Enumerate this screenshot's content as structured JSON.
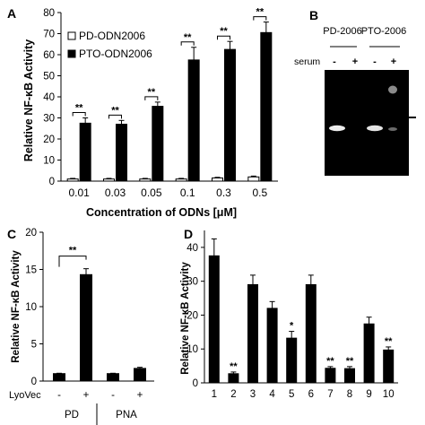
{
  "panels": {
    "A": "A",
    "B": "B",
    "C": "C",
    "D": "D"
  },
  "gel": {
    "lane_groups": [
      "PD-2006",
      "PTO-2006"
    ],
    "serum_label": "serum",
    "serum_marks": [
      "-",
      "+",
      "-",
      "+"
    ]
  },
  "colors": {
    "bar_filled": "#000000",
    "bar_open": "#ffffff",
    "gel_background": "#000000",
    "gel_band": "#e8e8e8"
  },
  "chart_data": [
    {
      "panel": "A",
      "type": "bar",
      "ylabel": "Relative NF-κB Activity",
      "xlabel": "Concentration of ODNs [μM]",
      "ylim": [
        0,
        80
      ],
      "yticks": [
        0,
        10,
        20,
        30,
        40,
        50,
        60,
        70,
        80
      ],
      "categories": [
        "0.01",
        "0.03",
        "0.05",
        "0.1",
        "0.3",
        "0.5"
      ],
      "legend_position": "top-left",
      "series": [
        {
          "name": "PD-ODN2006",
          "fill": "open",
          "values": [
            1.0,
            1.0,
            1.0,
            1.0,
            1.5,
            2.0
          ],
          "errors": [
            0.3,
            0.3,
            0.3,
            0.3,
            0.3,
            0.4
          ]
        },
        {
          "name": "PTO-ODN2006",
          "fill": "filled",
          "values": [
            27.5,
            27.0,
            35.5,
            57.5,
            62.5,
            70.5
          ],
          "errors": [
            2.5,
            1.8,
            2.0,
            6.0,
            3.8,
            5.0
          ]
        }
      ],
      "significance": [
        "**",
        "**",
        "**",
        "**",
        "**",
        "**"
      ]
    },
    {
      "panel": "C",
      "type": "bar",
      "ylabel": "Relative NF-κB Activity",
      "ylim": [
        0,
        20
      ],
      "yticks": [
        0,
        5,
        10,
        15,
        20
      ],
      "categories": [
        "-",
        "+",
        "-",
        "+"
      ],
      "row_label": "LyoVec",
      "groups": [
        "PD",
        "PNA"
      ],
      "values": [
        1.0,
        14.3,
        1.0,
        1.7
      ],
      "errors": [
        0.05,
        0.8,
        0.05,
        0.15
      ],
      "significance": [
        {
          "from": 0,
          "to": 1,
          "label": "**"
        }
      ]
    },
    {
      "panel": "D",
      "type": "bar",
      "ylabel": "Relative NF-κB Activity",
      "ylim": [
        0,
        45
      ],
      "yticks": [
        0,
        10,
        20,
        30,
        40
      ],
      "categories": [
        "1",
        "2",
        "3",
        "4",
        "5",
        "6",
        "7",
        "8",
        "9",
        "10"
      ],
      "values": [
        37.5,
        2.7,
        29.0,
        22.0,
        13.2,
        29.0,
        4.3,
        4.2,
        17.4,
        9.7
      ],
      "errors": [
        5.0,
        0.5,
        2.8,
        2.0,
        2.0,
        2.8,
        0.5,
        0.6,
        2.0,
        0.9
      ],
      "significance": [
        "",
        "**",
        "",
        "",
        "*",
        "",
        "**",
        "**",
        "",
        "**"
      ]
    }
  ]
}
